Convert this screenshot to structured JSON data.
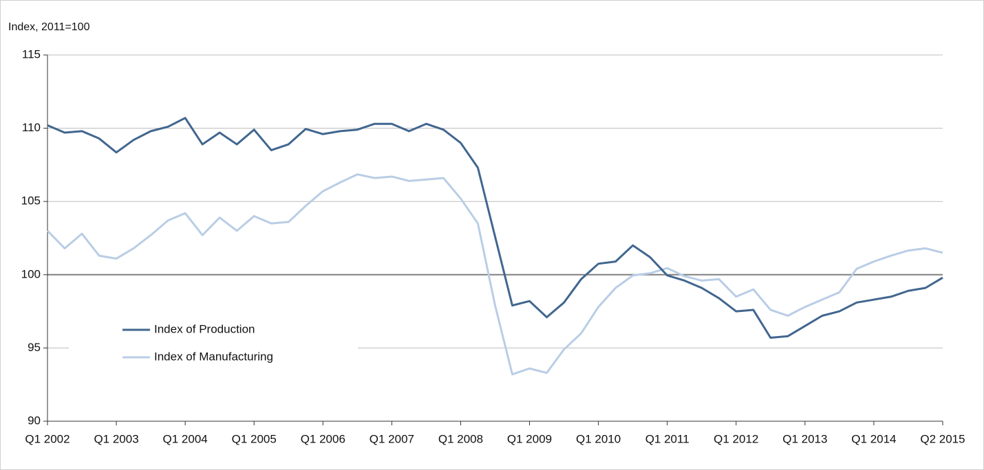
{
  "chart_data": {
    "type": "line",
    "y_axis_label": "Index, 2011=100",
    "categories": [
      "Q1 2002",
      null,
      null,
      null,
      "Q1 2003",
      null,
      null,
      null,
      "Q1 2004",
      null,
      null,
      null,
      "Q1 2005",
      null,
      null,
      null,
      "Q1 2006",
      null,
      null,
      null,
      "Q1 2007",
      null,
      null,
      null,
      "Q1 2008",
      null,
      null,
      null,
      "Q1 2009",
      null,
      null,
      null,
      "Q1 2010",
      null,
      null,
      null,
      "Q1 2011",
      null,
      null,
      null,
      "Q1 2012",
      null,
      null,
      null,
      "Q1 2013",
      null,
      null,
      null,
      "Q1 2014",
      null,
      null,
      null,
      "Q2 2015"
    ],
    "series": [
      {
        "name": "Index of Production",
        "color": "#41668f",
        "values": [
          110.2,
          109.7,
          109.8,
          109.3,
          108.35,
          109.2,
          109.8,
          110.1,
          110.7,
          108.9,
          109.7,
          108.9,
          109.9,
          108.5,
          108.9,
          109.95,
          109.6,
          109.8,
          109.9,
          110.3,
          110.3,
          109.8,
          110.3,
          109.9,
          109.0,
          107.3,
          102.6,
          97.9,
          98.2,
          97.1,
          98.1,
          99.7,
          100.75,
          100.9,
          102.0,
          101.2,
          99.95,
          99.6,
          99.1,
          98.4,
          97.5,
          97.6,
          95.7,
          95.8,
          96.5,
          97.2,
          97.5,
          98.1,
          98.3,
          98.5,
          98.9,
          99.1,
          99.8
        ]
      },
      {
        "name": "Index of Manufacturing",
        "color": "#b9cde5",
        "values": [
          103.0,
          101.8,
          102.8,
          101.3,
          101.1,
          101.8,
          102.7,
          103.7,
          104.2,
          102.7,
          103.9,
          103.0,
          104.0,
          103.5,
          103.6,
          104.7,
          105.7,
          106.3,
          106.85,
          106.6,
          106.7,
          106.4,
          106.5,
          106.6,
          105.2,
          103.5,
          97.9,
          93.2,
          93.6,
          93.3,
          94.9,
          96.0,
          97.8,
          99.1,
          99.95,
          100.1,
          100.45,
          99.9,
          99.6,
          99.7,
          98.5,
          99.0,
          97.6,
          97.2,
          97.8,
          98.3,
          98.8,
          100.4,
          100.9,
          101.3,
          101.65,
          101.8,
          101.5
        ]
      }
    ],
    "ylim": [
      90,
      115
    ],
    "yticks": [
      90,
      95,
      100,
      105,
      110,
      115
    ],
    "grid": true,
    "reference_line": 100,
    "legend": "lower-left"
  }
}
